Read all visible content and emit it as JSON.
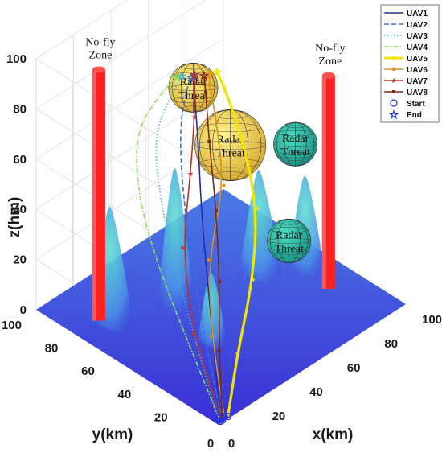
{
  "chart_data": {
    "type": "line3d",
    "xlabel": "x(km)",
    "ylabel": "y(km)",
    "zlabel": "z(hm)",
    "xlim": [
      0,
      100
    ],
    "ylim": [
      0,
      100
    ],
    "zlim": [
      0,
      100
    ],
    "x_ticks": [
      "0",
      "20",
      "40",
      "60",
      "80",
      "100"
    ],
    "y_ticks": [
      "0",
      "20",
      "40",
      "60",
      "80",
      "100"
    ],
    "z_ticks": [
      "0",
      "20",
      "40",
      "60",
      "80",
      "100"
    ],
    "grid": true,
    "legend_position": "top-right",
    "terrain_color_low": "#3b2fd6",
    "terrain_color_high": "#45d4c6",
    "no_fly_zones": [
      {
        "label": "No-fly Zone",
        "x": 12,
        "y": 78,
        "z_top": 100,
        "color": "#ff2020"
      },
      {
        "label": "No-fly Zone",
        "x": 86,
        "y": 28,
        "z_top": 85,
        "color": "#ff2020"
      }
    ],
    "radar_threats": [
      {
        "label": "Radar Threat",
        "x": 42,
        "y": 57,
        "z": 88,
        "r": 9,
        "color": "#e5c84a"
      },
      {
        "label": "Radar Threat",
        "x": 55,
        "y": 50,
        "z": 62,
        "r": 13,
        "color": "#f2e45a"
      },
      {
        "label": "Radar Threat",
        "x": 80,
        "y": 40,
        "z": 55,
        "r": 8,
        "color": "#2fbfa6"
      },
      {
        "label": "Radar Threat",
        "x": 62,
        "y": 25,
        "z": 32,
        "r": 8,
        "color": "#2fbfa6"
      }
    ],
    "start_marker": {
      "label": "Start",
      "color": "#2233dd"
    },
    "end_marker": {
      "label": "End",
      "color": "#2233dd"
    },
    "series": [
      {
        "name": "UAV1",
        "color": "#1f2fa8",
        "style": "solid",
        "points": [
          [
            2,
            1,
            0
          ],
          [
            6,
            8,
            18
          ],
          [
            12,
            18,
            40
          ],
          [
            20,
            30,
            62
          ],
          [
            28,
            40,
            82
          ],
          [
            32,
            46,
            94
          ],
          [
            34,
            48,
            100
          ]
        ]
      },
      {
        "name": "UAV2",
        "color": "#3a6fd8",
        "style": "dashed",
        "points": [
          [
            3,
            1,
            0
          ],
          [
            4,
            10,
            22
          ],
          [
            8,
            22,
            46
          ],
          [
            14,
            34,
            70
          ],
          [
            22,
            44,
            88
          ],
          [
            30,
            48,
            98
          ],
          [
            33,
            49,
            100
          ]
        ]
      },
      {
        "name": "UAV3",
        "color": "#3ab8d8",
        "style": "dotted",
        "points": [
          [
            2,
            2,
            0
          ],
          [
            2,
            12,
            20
          ],
          [
            4,
            26,
            44
          ],
          [
            8,
            40,
            66
          ],
          [
            16,
            52,
            84
          ],
          [
            26,
            52,
            96
          ],
          [
            31,
            52,
            100
          ]
        ]
      },
      {
        "name": "UAV4",
        "color": "#8ee05a",
        "style": "dashdot",
        "points": [
          [
            3,
            3,
            0
          ],
          [
            1,
            16,
            22
          ],
          [
            0,
            32,
            46
          ],
          [
            2,
            46,
            68
          ],
          [
            10,
            56,
            86
          ],
          [
            22,
            54,
            97
          ],
          [
            29,
            53,
            100
          ]
        ]
      },
      {
        "name": "UAV5",
        "color": "#f2e600",
        "style": "star",
        "points": [
          [
            6,
            1,
            0
          ],
          [
            16,
            6,
            18
          ],
          [
            30,
            12,
            38
          ],
          [
            40,
            20,
            58
          ],
          [
            44,
            32,
            78
          ],
          [
            44,
            42,
            94
          ],
          [
            42,
            44,
            100
          ]
        ]
      },
      {
        "name": "UAV6",
        "color": "#d9921a",
        "style": "circle",
        "points": [
          [
            5,
            2,
            0
          ],
          [
            10,
            14,
            24
          ],
          [
            18,
            24,
            46
          ],
          [
            30,
            28,
            68
          ],
          [
            36,
            38,
            86
          ],
          [
            38,
            44,
            97
          ],
          [
            39,
            45,
            100
          ]
        ]
      },
      {
        "name": "UAV7",
        "color": "#b8342a",
        "style": "star",
        "points": [
          [
            4,
            3,
            0
          ],
          [
            6,
            20,
            24
          ],
          [
            12,
            32,
            50
          ],
          [
            22,
            38,
            72
          ],
          [
            30,
            44,
            88
          ],
          [
            34,
            48,
            98
          ],
          [
            35,
            49,
            100
          ]
        ]
      },
      {
        "name": "UAV8",
        "color": "#7a2a0e",
        "style": "square",
        "points": [
          [
            4,
            2,
            0
          ],
          [
            10,
            10,
            20
          ],
          [
            18,
            18,
            40
          ],
          [
            26,
            28,
            60
          ],
          [
            32,
            38,
            80
          ],
          [
            36,
            44,
            95
          ],
          [
            37,
            46,
            100
          ]
        ]
      }
    ]
  }
}
